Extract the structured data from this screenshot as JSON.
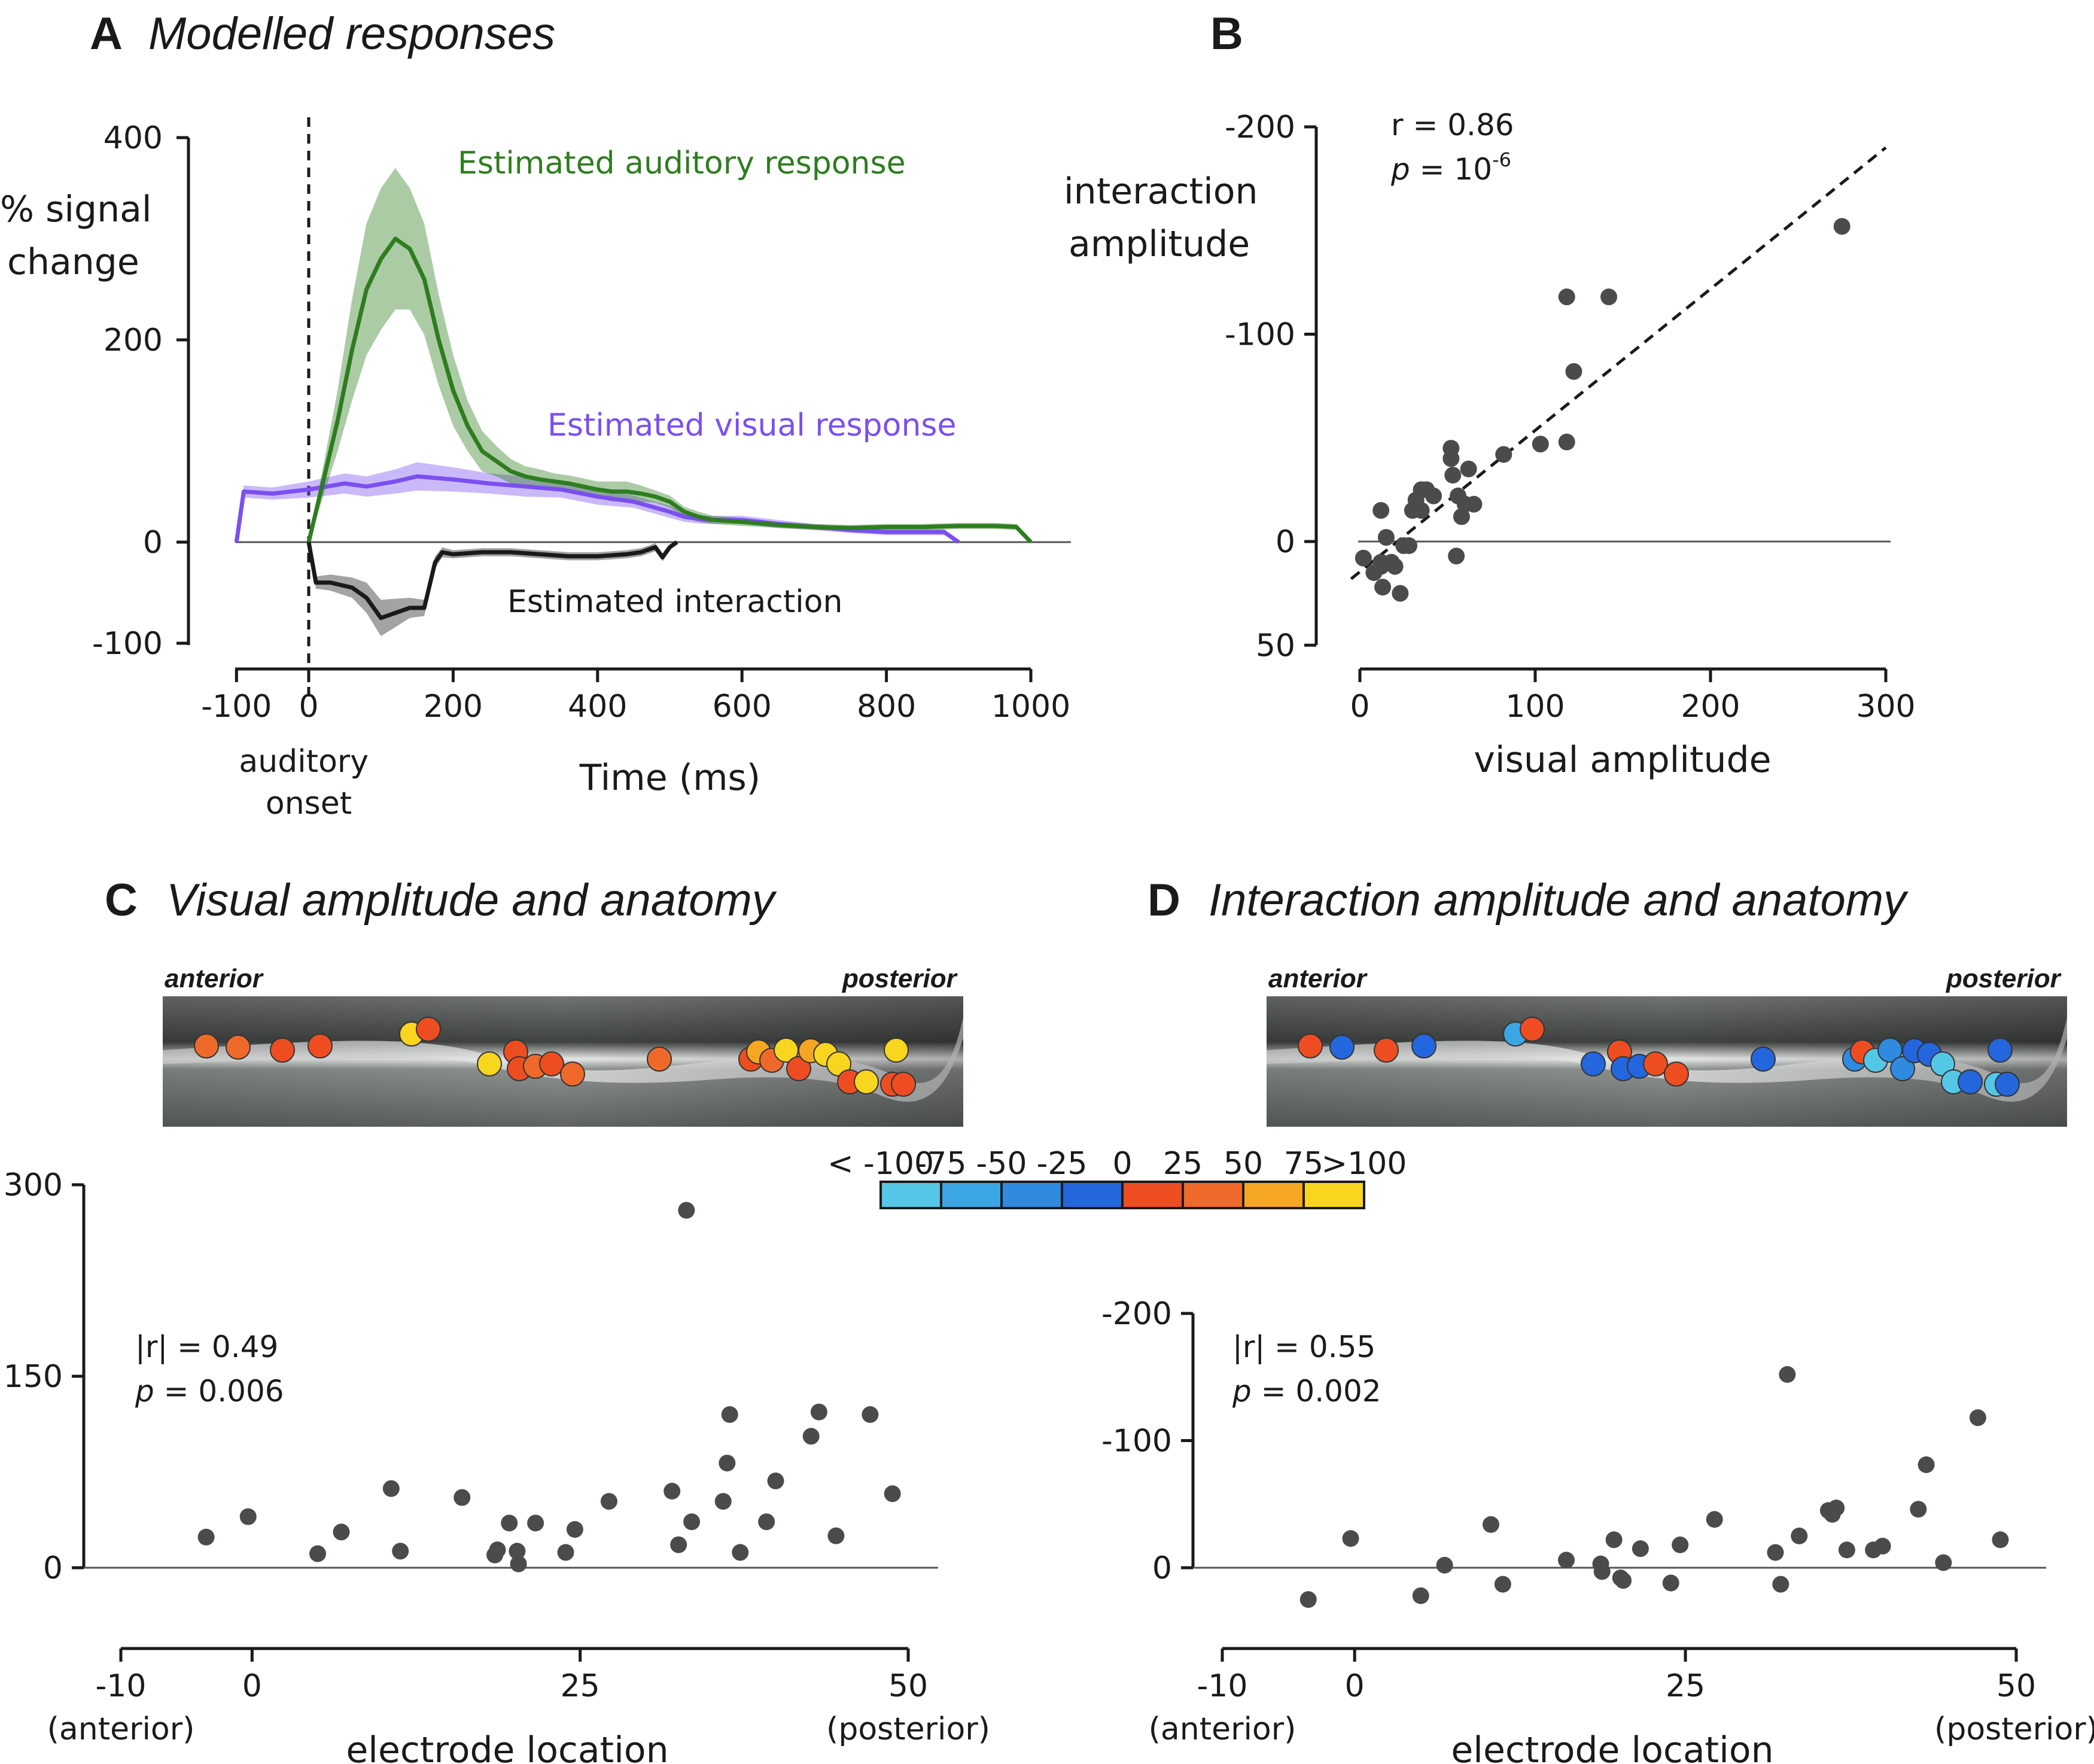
{
  "panels": {
    "A": {
      "letter": "A",
      "title": "Modelled responses"
    },
    "B": {
      "letter": "B"
    },
    "C": {
      "letter": "C",
      "title": "Visual amplitude and anatomy"
    },
    "D": {
      "letter": "D",
      "title": "Interaction amplitude and anatomy"
    }
  },
  "chart_data": [
    {
      "id": "A",
      "type": "line",
      "ylabel": "% signal change",
      "xlabel": "Time (ms)",
      "xlim": [
        -100,
        1000
      ],
      "ylim": [
        -100,
        400
      ],
      "xticks": [
        "-100",
        "0",
        "200",
        "400",
        "600",
        "800",
        "1000"
      ],
      "yticks": [
        "400",
        "200",
        "0",
        "-100"
      ],
      "marker_label": "auditory onset",
      "series": [
        {
          "name": "Estimated auditory response",
          "color": "#2e7d1f",
          "x": [
            0,
            20,
            40,
            60,
            80,
            100,
            120,
            140,
            160,
            180,
            200,
            220,
            240,
            260,
            280,
            300,
            320,
            340,
            360,
            380,
            400,
            420,
            440,
            460,
            480,
            500,
            520,
            540,
            560,
            600,
            650,
            700,
            750,
            800,
            850,
            900,
            950,
            980,
            1000
          ],
          "y": [
            0,
            60,
            120,
            190,
            250,
            280,
            300,
            290,
            260,
            200,
            150,
            115,
            90,
            80,
            70,
            65,
            62,
            60,
            58,
            55,
            52,
            50,
            50,
            48,
            45,
            40,
            30,
            25,
            22,
            20,
            17,
            15,
            14,
            15,
            15,
            16,
            16,
            15,
            0
          ],
          "band": [
            0,
            15,
            30,
            50,
            65,
            70,
            70,
            60,
            55,
            45,
            35,
            25,
            20,
            15,
            12,
            10,
            10,
            8,
            8,
            8,
            8,
            10,
            10,
            8,
            6,
            6,
            5,
            5,
            4,
            4,
            3,
            3,
            3,
            3,
            3,
            3,
            3,
            3,
            0
          ]
        },
        {
          "name": "Estimated visual response",
          "color": "#7b4ff0",
          "x": [
            -100,
            -90,
            -50,
            0,
            50,
            80,
            120,
            150,
            200,
            250,
            300,
            350,
            400,
            450,
            500,
            520,
            550,
            600,
            650,
            700,
            750,
            800,
            850,
            880,
            900
          ],
          "y": [
            0,
            50,
            48,
            52,
            58,
            55,
            60,
            65,
            62,
            58,
            55,
            52,
            45,
            40,
            30,
            25,
            22,
            22,
            18,
            15,
            12,
            10,
            10,
            10,
            0
          ],
          "band": [
            0,
            6,
            6,
            8,
            10,
            10,
            12,
            14,
            12,
            10,
            10,
            8,
            8,
            6,
            6,
            5,
            4,
            4,
            4,
            3,
            3,
            3,
            3,
            3,
            0
          ]
        },
        {
          "name": "Estimated interaction",
          "color": "#1a1a1a",
          "x": [
            0,
            10,
            30,
            60,
            80,
            100,
            120,
            140,
            160,
            175,
            185,
            200,
            240,
            280,
            320,
            360,
            400,
            440,
            460,
            480,
            490,
            500,
            510
          ],
          "y": [
            0,
            -40,
            -40,
            -45,
            -55,
            -75,
            -70,
            -65,
            -65,
            -20,
            -10,
            -12,
            -10,
            -10,
            -12,
            -14,
            -14,
            -12,
            -10,
            -5,
            -15,
            -5,
            0
          ],
          "band": [
            0,
            6,
            8,
            10,
            15,
            18,
            14,
            10,
            8,
            6,
            5,
            4,
            4,
            4,
            4,
            4,
            4,
            4,
            4,
            4,
            4,
            3,
            0
          ]
        }
      ]
    },
    {
      "id": "B",
      "type": "scatter",
      "xlabel": "visual amplitude",
      "ylabel": "interaction amplitude",
      "xlim": [
        0,
        300
      ],
      "ylim": [
        50,
        -200
      ],
      "xticks": [
        "0",
        "100",
        "200",
        "300"
      ],
      "yticks": [
        "-200",
        "-100",
        "0",
        "50"
      ],
      "stat_r": "r = 0.86",
      "stat_p_italic": "p",
      "stat_p_text": " = 10",
      "stat_p_exp": "-6",
      "fit_line": {
        "x": [
          -5,
          300
        ],
        "y": [
          18,
          -190
        ]
      },
      "x": [
        2,
        8,
        12,
        12,
        12,
        13,
        15,
        18,
        20,
        23,
        25,
        28,
        30,
        32,
        35,
        35,
        38,
        42,
        52,
        52,
        53,
        55,
        56,
        58,
        60,
        62,
        65,
        82,
        103,
        118,
        118,
        122,
        142,
        275
      ],
      "y": [
        8,
        15,
        -15,
        10,
        12,
        22,
        -2,
        10,
        12,
        25,
        2,
        2,
        -15,
        -20,
        -15,
        -25,
        -25,
        -22,
        -40,
        -45,
        -32,
        7,
        -22,
        -12,
        -18,
        -35,
        -18,
        -42,
        -47,
        -48,
        -118,
        -82,
        -118,
        -152
      ]
    },
    {
      "id": "C",
      "type": "scatter",
      "xlabel": "electrode location",
      "ylabel": "",
      "xlim": [
        -10,
        50
      ],
      "ylim": [
        0,
        300
      ],
      "xticks": [
        "-10",
        "0",
        "25",
        "50"
      ],
      "yticks": [
        "300",
        "150",
        "0"
      ],
      "xtick_sub": [
        "(anterior)",
        "(posterior)"
      ],
      "stat_r": "|r| = 0.49",
      "stat_p_italic": "p",
      "stat_p_text": " = 0.006",
      "x": [
        -3.5,
        -0.3,
        5,
        6.8,
        10.6,
        11.3,
        16,
        18.5,
        18.7,
        19.6,
        20.2,
        20.3,
        21.6,
        23.9,
        24.6,
        27.2,
        32,
        32.5,
        33.1,
        33.5,
        35.9,
        36.2,
        36.4,
        37.2,
        39.2,
        39.9,
        42.6,
        43.2,
        44.5,
        47.1,
        48.8
      ],
      "y": [
        24,
        40,
        11,
        28,
        62,
        13,
        55,
        10,
        14,
        35,
        13,
        3,
        35,
        12,
        30,
        52,
        60,
        18,
        280,
        36,
        52,
        82,
        120,
        12,
        36,
        68,
        103,
        122,
        25,
        120,
        58
      ]
    },
    {
      "id": "D",
      "type": "scatter",
      "xlabel": "electrode location",
      "ylabel": "",
      "xlim": [
        -10,
        50
      ],
      "ylim": [
        30,
        -200
      ],
      "xticks": [
        "-10",
        "0",
        "25",
        "50"
      ],
      "yticks": [
        "-200",
        "-100",
        "0"
      ],
      "xtick_sub": [
        "(anterior)",
        "(posterior)"
      ],
      "stat_r": "|r| = 0.55",
      "stat_p_italic": "p",
      "stat_p_text": " = 0.002",
      "x": [
        -3.5,
        -0.3,
        5,
        6.8,
        10.3,
        11.2,
        16,
        18.6,
        18.7,
        19.6,
        20.1,
        20.3,
        21.6,
        23.9,
        24.6,
        27.2,
        31.8,
        32.2,
        32.7,
        33.6,
        35.8,
        36.1,
        36.4,
        37.2,
        39.2,
        39.9,
        42.6,
        43.2,
        44.5,
        47.1,
        48.8
      ],
      "y": [
        25,
        -23,
        22,
        -2,
        -34,
        13,
        -6,
        -3,
        3,
        -22,
        8,
        10,
        -15,
        12,
        -18,
        -38,
        -12,
        13,
        -152,
        -25,
        -45,
        -42,
        -47,
        -14,
        -14,
        -17,
        -46,
        -81,
        -4,
        -118,
        -22
      ]
    }
  ],
  "colorbar": {
    "labels": [
      "< -100",
      "-75",
      "-50",
      "-25",
      "0",
      "25",
      "50",
      "75",
      ">100"
    ],
    "colors": [
      "#54c6e6",
      "#3aa6e4",
      "#2f8ae0",
      "#2466dd",
      "#ee4d22",
      "#ef6a2a",
      "#f5a623",
      "#f8d51e"
    ]
  },
  "anatomy": {
    "anterior": "anterior",
    "posterior": "posterior",
    "visual_colors": [
      "#ef6a2a",
      "#ef6a2a",
      "#ee4d22",
      "#ee4d22",
      "#f8d51e",
      "#ee4d22",
      "#f8d51e",
      "#ee4d22",
      "#ee4d22",
      "#ef6a2a",
      "#ee4d22",
      "#ef6a2a",
      "#ef6a2a",
      "#ee4d22",
      "#f5a623",
      "#ef6a2a",
      "#f8d51e",
      "#ee4d22",
      "#f5a623",
      "#f8d51e",
      "#f8d51e",
      "#ee4d22",
      "#f8d51e",
      "#f8d51e",
      "#ee4d22",
      "#ee4d22"
    ],
    "interaction_colors": [
      "#ee4d22",
      "#2466dd",
      "#ee4d22",
      "#2466dd",
      "#3aa6e4",
      "#ee4d22",
      "#2466dd",
      "#ee4d22",
      "#2466dd",
      "#2466dd",
      "#ee4d22",
      "#ee4d22",
      "#2466dd",
      "#2f8ae0",
      "#ee4d22",
      "#54c6e6",
      "#2f8ae0",
      "#2f8ae0",
      "#2466dd",
      "#2466dd",
      "#54c6e6",
      "#54c6e6",
      "#2466dd",
      "#2466dd",
      "#54c6e6",
      "#2466dd"
    ]
  }
}
